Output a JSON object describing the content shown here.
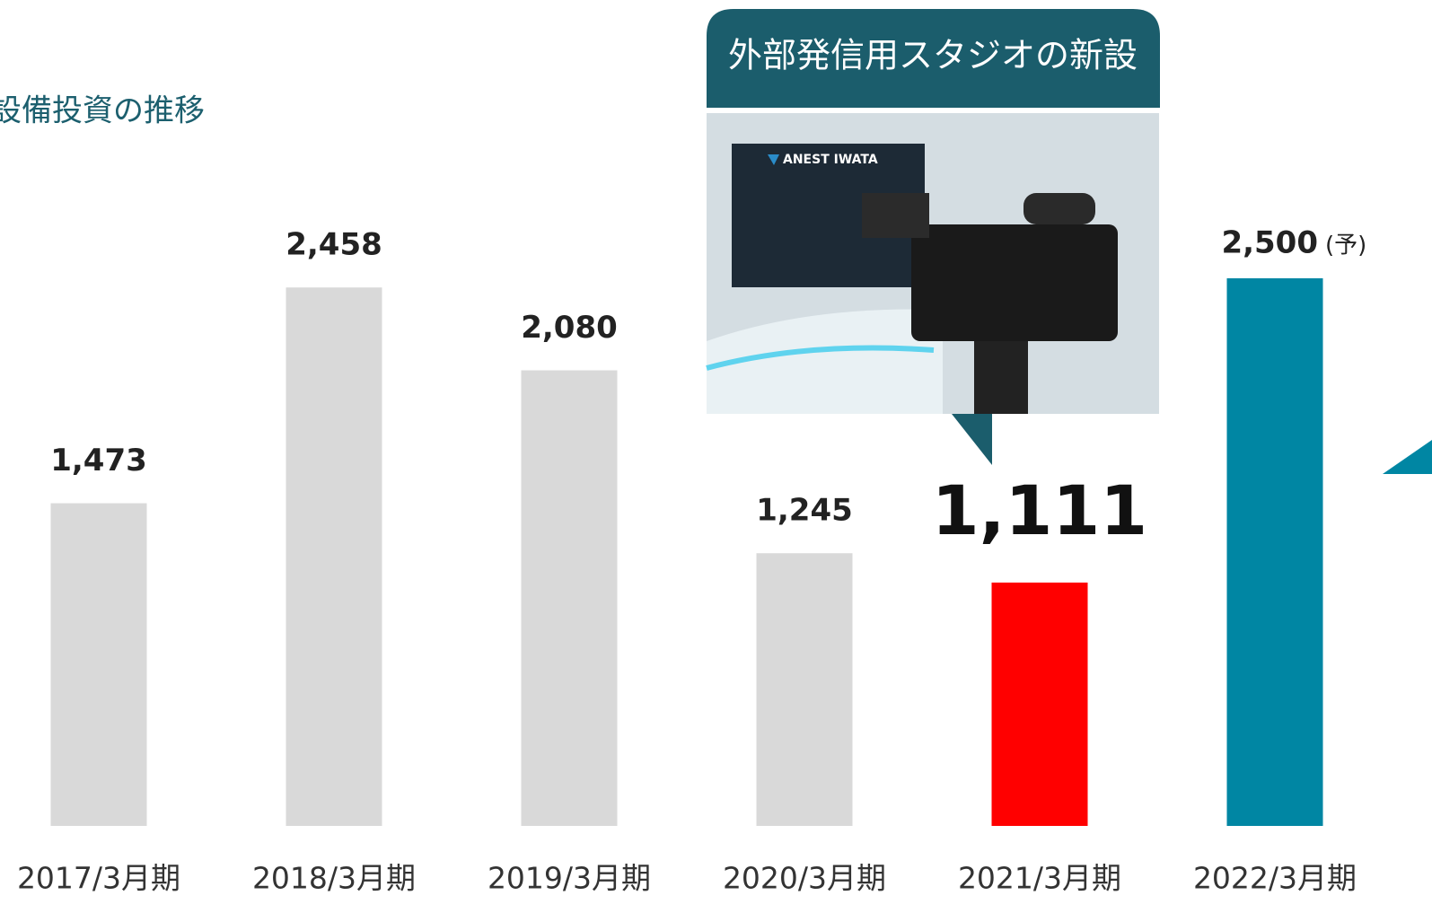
{
  "chart_data": {
    "type": "bar",
    "title": "設備投資の推移",
    "categories": [
      "2017/3月期",
      "2018/3月期",
      "2019/3月期",
      "2020/3月期",
      "2021/3月期",
      "2022/3月期"
    ],
    "values": [
      1473,
      2458,
      2080,
      1245,
      1111,
      2500
    ],
    "value_labels": [
      "1,473",
      "2,458",
      "2,080",
      "1,245",
      "1,111",
      "2,500"
    ],
    "colors": [
      "#d9d9d9",
      "#d9d9d9",
      "#d9d9d9",
      "#d9d9d9",
      "#ff0000",
      "#0086a3"
    ],
    "ylim": [
      0,
      2500
    ],
    "forecast_note": "(予)",
    "callout": "外部発信用スタジオの新設",
    "photo_text": "ANEST IWATA"
  }
}
